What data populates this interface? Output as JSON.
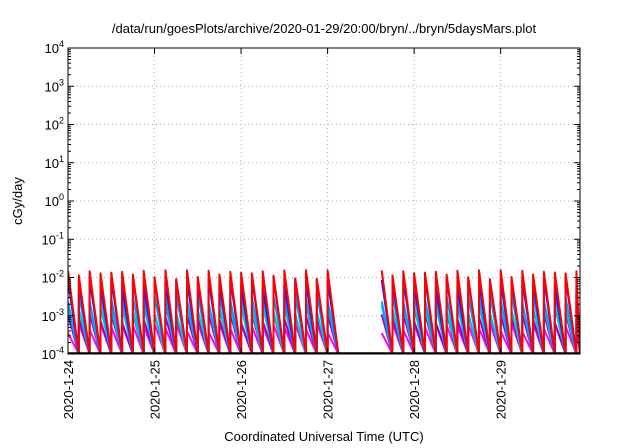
{
  "chart_data": {
    "type": "line",
    "title": "/data/run/goesPlots/archive/2020-01-29/20:00/bryn/../bryn/5daysMars.plot",
    "xlabel": "Coordinated Universal Time (UTC)",
    "ylabel": "cGy/day",
    "x_scale": "date",
    "xlim": [
      "2020-01-24",
      "2020-01-29 22:00"
    ],
    "x_ticks": [
      "2020-1-24",
      "2020-1-25",
      "2020-1-26",
      "2020-1-27",
      "2020-1-28",
      "2020-1-29"
    ],
    "y_scale": "log",
    "ylim": [
      0.0001,
      10000
    ],
    "y_ticks": [
      {
        "base": "10",
        "exp": "4"
      },
      {
        "base": "10",
        "exp": "3"
      },
      {
        "base": "10",
        "exp": "2"
      },
      {
        "base": "10",
        "exp": "1"
      },
      {
        "base": "10",
        "exp": "0"
      },
      {
        "base": "10",
        "exp": "-1"
      },
      {
        "base": "10",
        "exp": "-2"
      },
      {
        "base": "10",
        "exp": "-3"
      },
      {
        "base": "10",
        "exp": "-4"
      }
    ],
    "grid": true,
    "data_gap": [
      "2020-01-27 03:00",
      "2020-01-27 15:00"
    ],
    "series": [
      {
        "color": "#ff0000",
        "peak": 0.012,
        "decay": 0.0001
      },
      {
        "color": "#1a1aff",
        "peak": 0.0075,
        "decay": 0.0001
      },
      {
        "color": "#00a0ff",
        "peak": 0.003,
        "decay": 0.0001
      },
      {
        "color": "#00c8c8",
        "peak": 0.0015,
        "decay": 0.0001
      },
      {
        "color": "#9900cc",
        "peak": 0.0009,
        "decay": 0.0001
      },
      {
        "color": "#ff00ff",
        "peak": 0.0005,
        "decay": 0.0001
      }
    ]
  }
}
